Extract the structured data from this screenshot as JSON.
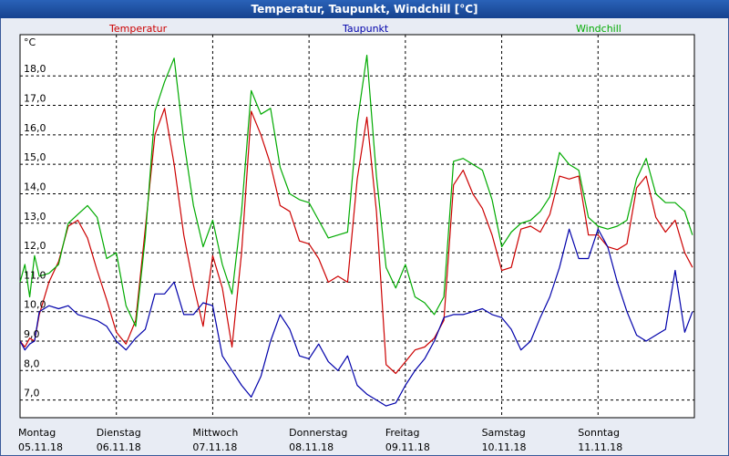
{
  "window": {
    "title": "Temperatur, Taupunkt, Windchill [°C]"
  },
  "colors": {
    "background": "#e8ecf4",
    "plot_background": "#ffffff",
    "grid": "#000000",
    "temperatur": "#cc0000",
    "taupunkt": "#0000aa",
    "windchill": "#00aa00"
  },
  "chart_data": {
    "type": "line",
    "title": "Temperatur, Taupunkt, Windchill [°C]",
    "ylabel": "°C",
    "xlabel": "",
    "ylim": [
      6.4,
      19.4
    ],
    "xlim": [
      0,
      7
    ],
    "grid": true,
    "legend_placement": "top",
    "y_ticks": [
      {
        "value": 7.0,
        "label": "7,0"
      },
      {
        "value": 8.0,
        "label": "8,0"
      },
      {
        "value": 9.0,
        "label": "9,0"
      },
      {
        "value": 10.0,
        "label": "10,0"
      },
      {
        "value": 11.0,
        "label": "11,0"
      },
      {
        "value": 12.0,
        "label": "12,0"
      },
      {
        "value": 13.0,
        "label": "13,0"
      },
      {
        "value": 14.0,
        "label": "14,0"
      },
      {
        "value": 15.0,
        "label": "15,0"
      },
      {
        "value": 16.0,
        "label": "16,0"
      },
      {
        "value": 17.0,
        "label": "17,0"
      },
      {
        "value": 18.0,
        "label": "18,0"
      }
    ],
    "x_ticks": [
      {
        "value": 0,
        "day": "Montag",
        "date": "05.11.18"
      },
      {
        "value": 1,
        "day": "Dienstag",
        "date": "06.11.18"
      },
      {
        "value": 2,
        "day": "Mittwoch",
        "date": "07.11.18"
      },
      {
        "value": 3,
        "day": "Donnerstag",
        "date": "08.11.18"
      },
      {
        "value": 4,
        "day": "Freitag",
        "date": "09.11.18"
      },
      {
        "value": 5,
        "day": "Samstag",
        "date": "10.11.18"
      },
      {
        "value": 6,
        "day": "Sonntag",
        "date": "11.11.18"
      }
    ],
    "series": [
      {
        "name": "Temperatur",
        "color": "#cc0000",
        "x": [
          0,
          0.05,
          0.1,
          0.15,
          0.2,
          0.3,
          0.4,
          0.5,
          0.6,
          0.7,
          0.8,
          0.9,
          1.0,
          1.1,
          1.2,
          1.3,
          1.4,
          1.5,
          1.6,
          1.7,
          1.8,
          1.9,
          2.0,
          2.1,
          2.2,
          2.3,
          2.4,
          2.5,
          2.6,
          2.7,
          2.8,
          2.9,
          3.0,
          3.1,
          3.2,
          3.3,
          3.4,
          3.5,
          3.6,
          3.7,
          3.8,
          3.9,
          4.0,
          4.1,
          4.2,
          4.3,
          4.4,
          4.5,
          4.6,
          4.7,
          4.8,
          4.9,
          5.0,
          5.1,
          5.2,
          5.3,
          5.4,
          5.5,
          5.6,
          5.7,
          5.8,
          5.9,
          6.0,
          6.1,
          6.2,
          6.3,
          6.4,
          6.5,
          6.6,
          6.7,
          6.8,
          6.9,
          6.98
        ],
        "values": [
          9.0,
          8.8,
          9.1,
          9.0,
          9.9,
          11.0,
          11.7,
          12.9,
          13.1,
          12.5,
          11.4,
          10.4,
          9.3,
          8.9,
          9.7,
          12.8,
          16.0,
          16.9,
          15.0,
          12.6,
          10.9,
          9.5,
          11.9,
          10.8,
          8.8,
          12.0,
          16.8,
          16.0,
          15.0,
          13.6,
          13.4,
          12.4,
          12.3,
          11.8,
          11.0,
          11.2,
          11.0,
          14.5,
          16.6,
          13.4,
          8.2,
          7.9,
          8.3,
          8.7,
          8.8,
          9.1,
          9.7,
          14.3,
          14.8,
          14.0,
          13.5,
          12.6,
          11.4,
          11.5,
          12.8,
          12.9,
          12.7,
          13.3,
          14.6,
          14.5,
          14.6,
          12.6,
          12.6,
          12.2,
          12.1,
          12.3,
          14.2,
          14.6,
          13.2,
          12.7,
          13.1,
          12.0,
          11.5
        ]
      },
      {
        "name": "Taupunkt",
        "color": "#0000aa",
        "x": [
          0,
          0.05,
          0.1,
          0.15,
          0.2,
          0.3,
          0.4,
          0.5,
          0.6,
          0.7,
          0.8,
          0.9,
          1.0,
          1.1,
          1.2,
          1.3,
          1.4,
          1.5,
          1.6,
          1.7,
          1.8,
          1.9,
          2.0,
          2.1,
          2.2,
          2.3,
          2.4,
          2.5,
          2.6,
          2.7,
          2.8,
          2.9,
          3.0,
          3.1,
          3.2,
          3.3,
          3.4,
          3.5,
          3.6,
          3.7,
          3.8,
          3.9,
          4.0,
          4.1,
          4.2,
          4.3,
          4.4,
          4.5,
          4.6,
          4.7,
          4.8,
          4.9,
          5.0,
          5.1,
          5.2,
          5.3,
          5.4,
          5.5,
          5.6,
          5.7,
          5.8,
          5.9,
          6.0,
          6.1,
          6.2,
          6.3,
          6.4,
          6.5,
          6.6,
          6.7,
          6.8,
          6.9,
          6.98
        ],
        "values": [
          9.0,
          8.7,
          8.9,
          9.0,
          10.0,
          10.2,
          10.1,
          10.2,
          9.9,
          9.8,
          9.7,
          9.5,
          9.0,
          8.7,
          9.1,
          9.4,
          10.6,
          10.6,
          11.0,
          9.9,
          9.9,
          10.3,
          10.2,
          8.5,
          8.0,
          7.5,
          7.1,
          7.8,
          9.0,
          9.9,
          9.4,
          8.5,
          8.4,
          8.9,
          8.3,
          8.0,
          8.5,
          7.5,
          7.2,
          7.0,
          6.8,
          6.9,
          7.5,
          8.0,
          8.4,
          9.0,
          9.8,
          9.9,
          9.9,
          10.0,
          10.1,
          9.9,
          9.8,
          9.4,
          8.7,
          9.0,
          9.8,
          10.5,
          11.5,
          12.8,
          11.8,
          11.8,
          12.8,
          12.2,
          11.0,
          10.0,
          9.2,
          9.0,
          9.2,
          9.4,
          11.4,
          9.3,
          10.0
        ]
      },
      {
        "name": "Windchill",
        "color": "#00aa00",
        "x": [
          0,
          0.05,
          0.1,
          0.15,
          0.2,
          0.3,
          0.4,
          0.5,
          0.6,
          0.7,
          0.8,
          0.9,
          1.0,
          1.1,
          1.2,
          1.3,
          1.4,
          1.5,
          1.6,
          1.7,
          1.8,
          1.9,
          2.0,
          2.1,
          2.2,
          2.3,
          2.4,
          2.5,
          2.6,
          2.7,
          2.8,
          2.9,
          3.0,
          3.1,
          3.2,
          3.3,
          3.4,
          3.5,
          3.6,
          3.7,
          3.8,
          3.9,
          4.0,
          4.1,
          4.2,
          4.3,
          4.4,
          4.5,
          4.6,
          4.7,
          4.8,
          4.9,
          5.0,
          5.1,
          5.2,
          5.3,
          5.4,
          5.5,
          5.6,
          5.7,
          5.8,
          5.9,
          6.0,
          6.1,
          6.2,
          6.3,
          6.4,
          6.5,
          6.6,
          6.7,
          6.8,
          6.9,
          6.98
        ],
        "values": [
          11.0,
          11.6,
          10.5,
          11.9,
          11.2,
          11.3,
          11.6,
          13.0,
          13.3,
          13.6,
          13.2,
          11.8,
          12.0,
          10.2,
          9.5,
          12.5,
          16.8,
          17.8,
          18.6,
          15.8,
          13.6,
          12.2,
          13.1,
          11.6,
          10.6,
          13.4,
          17.5,
          16.7,
          16.9,
          14.9,
          14.0,
          13.8,
          13.7,
          13.1,
          12.5,
          12.6,
          12.7,
          16.4,
          18.7,
          14.6,
          11.5,
          10.8,
          11.6,
          10.5,
          10.3,
          9.9,
          10.5,
          15.1,
          15.2,
          15.0,
          14.8,
          13.8,
          12.2,
          12.7,
          13.0,
          13.1,
          13.4,
          13.9,
          15.4,
          15.0,
          14.8,
          13.2,
          12.9,
          12.8,
          12.9,
          13.1,
          14.5,
          15.2,
          14.0,
          13.7,
          13.7,
          13.4,
          12.6
        ]
      }
    ]
  }
}
